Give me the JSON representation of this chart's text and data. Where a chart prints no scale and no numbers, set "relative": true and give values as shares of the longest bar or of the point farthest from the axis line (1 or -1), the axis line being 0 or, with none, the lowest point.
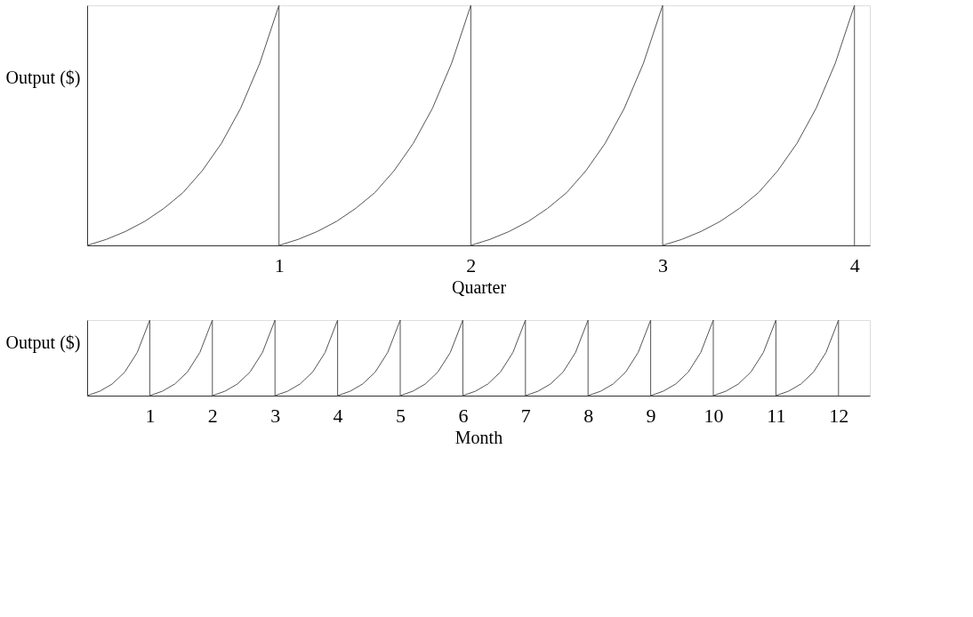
{
  "chart_data": [
    {
      "type": "line",
      "relative": true,
      "xlabel": "Quarter",
      "ylabel": "Output ($)",
      "tick_labels": "x",
      "xlim": [
        0,
        4.08
      ],
      "xticks": [
        1,
        2,
        3,
        4
      ],
      "series": [
        {
          "color": "#555555",
          "x": [
            0,
            0.1,
            0.2,
            0.3,
            0.4,
            0.5,
            0.6,
            0.7,
            0.8,
            0.9,
            1,
            1,
            1.1,
            1.2,
            1.3,
            1.4,
            1.5,
            1.6,
            1.7,
            1.8,
            1.9,
            2,
            2,
            2.1,
            2.2,
            2.3,
            2.4,
            2.5,
            2.6,
            2.7,
            2.8,
            2.9,
            3,
            3,
            3.1,
            3.2,
            3.3,
            3.4,
            3.5,
            3.6,
            3.7,
            3.8,
            3.9,
            4,
            4
          ],
          "values": [
            0,
            0.025,
            0.058,
            0.1,
            0.154,
            0.22,
            0.311,
            0.425,
            0.571,
            0.759,
            1,
            0,
            0.025,
            0.058,
            0.1,
            0.154,
            0.22,
            0.311,
            0.425,
            0.571,
            0.759,
            1,
            0,
            0.025,
            0.058,
            0.1,
            0.154,
            0.22,
            0.311,
            0.425,
            0.571,
            0.759,
            1,
            0,
            0.025,
            0.058,
            0.1,
            0.154,
            0.22,
            0.311,
            0.425,
            0.571,
            0.759,
            1,
            0
          ]
        }
      ]
    },
    {
      "type": "line",
      "relative": true,
      "xlabel": "Month",
      "ylabel": "Output ($)",
      "tick_labels": "x",
      "xlim": [
        0,
        12.5
      ],
      "xticks": [
        1,
        2,
        3,
        4,
        5,
        6,
        7,
        8,
        9,
        10,
        11,
        12
      ],
      "series": [
        {
          "color": "#555555",
          "x": [
            0,
            0.2,
            0.4,
            0.6,
            0.8,
            1,
            1,
            1.2,
            1.4,
            1.6,
            1.8,
            2,
            2,
            2.2,
            2.4,
            2.6,
            2.8,
            3,
            3,
            3.2,
            3.4,
            3.6,
            3.8,
            4,
            4,
            4.2,
            4.4,
            4.6,
            4.8,
            5,
            5,
            5.2,
            5.4,
            5.6,
            5.8,
            6,
            6,
            6.2,
            6.4,
            6.6,
            6.8,
            7,
            7,
            7.2,
            7.4,
            7.6,
            7.8,
            8,
            8,
            8.2,
            8.4,
            8.6,
            8.8,
            9,
            9,
            9.2,
            9.4,
            9.6,
            9.8,
            10,
            10,
            10.2,
            10.4,
            10.6,
            10.8,
            11,
            11,
            11.2,
            11.4,
            11.6,
            11.8,
            12,
            12
          ],
          "values": [
            0,
            0.058,
            0.154,
            0.311,
            0.571,
            1,
            0,
            0.058,
            0.154,
            0.311,
            0.571,
            1,
            0,
            0.058,
            0.154,
            0.311,
            0.571,
            1,
            0,
            0.058,
            0.154,
            0.311,
            0.571,
            1,
            0,
            0.058,
            0.154,
            0.311,
            0.571,
            1,
            0,
            0.058,
            0.154,
            0.311,
            0.571,
            1,
            0,
            0.058,
            0.154,
            0.311,
            0.571,
            1,
            0,
            0.058,
            0.154,
            0.311,
            0.571,
            1,
            0,
            0.058,
            0.154,
            0.311,
            0.571,
            1,
            0,
            0.058,
            0.154,
            0.311,
            0.571,
            1,
            0,
            0.058,
            0.154,
            0.311,
            0.571,
            1,
            0,
            0.058,
            0.154,
            0.311,
            0.571,
            1,
            0
          ]
        }
      ]
    }
  ]
}
